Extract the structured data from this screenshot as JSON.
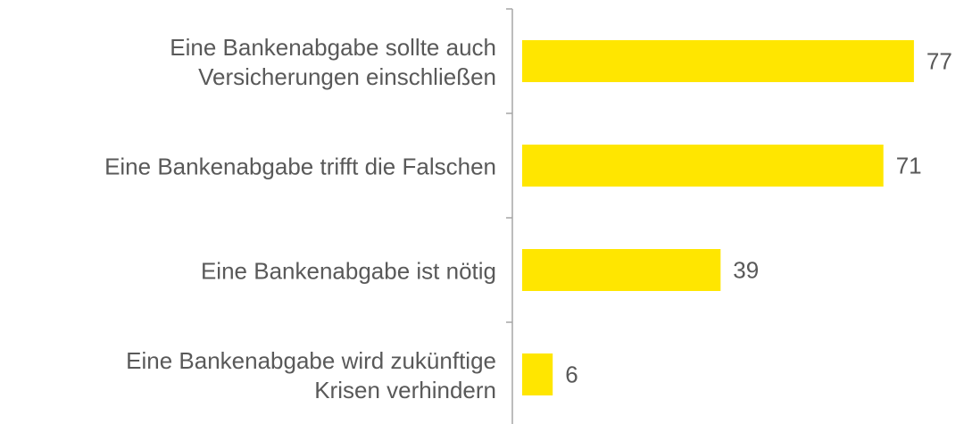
{
  "chart_data": {
    "type": "bar",
    "orientation": "horizontal",
    "categories": [
      "Eine Bankenabgabe sollte auch\nVersicherungen einschließen",
      "Eine Bankenabgabe trifft die Falschen",
      "Eine Bankenabgabe ist nötig",
      "Eine Bankenabgabe wird zukünftige\nKrisen verhindern"
    ],
    "values": [
      77,
      71,
      39,
      6
    ],
    "color": "#ffe600"
  }
}
